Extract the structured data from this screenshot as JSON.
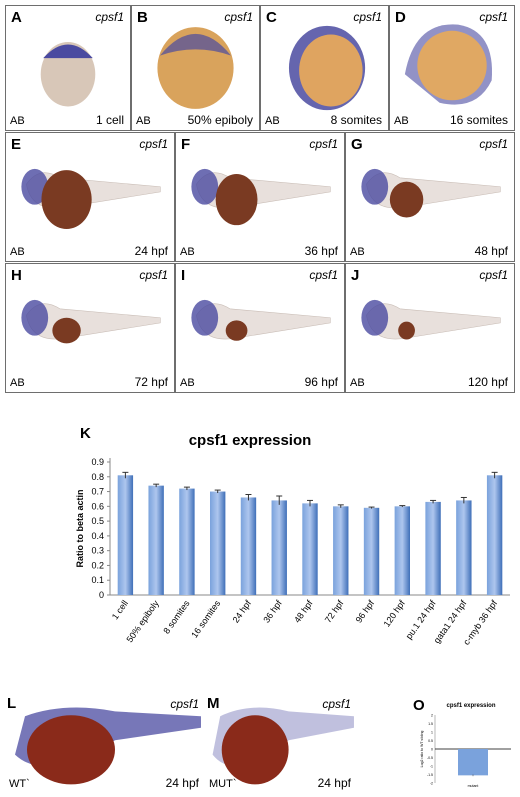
{
  "gene_label": "cpsf1",
  "embryo_panels": [
    {
      "label": "A",
      "strain": "AB",
      "stage": "1 cell"
    },
    {
      "label": "B",
      "strain": "AB",
      "stage": "50% epiboly"
    },
    {
      "label": "C",
      "strain": "AB",
      "stage": "8 somites"
    },
    {
      "label": "D",
      "strain": "AB",
      "stage": "16 somites"
    },
    {
      "label": "E",
      "strain": "AB",
      "stage": "24 hpf"
    },
    {
      "label": "F",
      "strain": "AB",
      "stage": "36 hpf"
    },
    {
      "label": "G",
      "strain": "AB",
      "stage": "48 hpf"
    },
    {
      "label": "H",
      "strain": "AB",
      "stage": "72 hpf"
    },
    {
      "label": "I",
      "strain": "AB",
      "stage": "96 hpf"
    },
    {
      "label": "J",
      "strain": "AB",
      "stage": "120 hpf"
    }
  ],
  "panel_k": {
    "label": "K"
  },
  "bottom_panels": [
    {
      "label": "L",
      "strain": "WT`",
      "stage": "24 hpf"
    },
    {
      "label": "M",
      "strain": "MUT`",
      "stage": "24 hpf"
    }
  ],
  "panel_o": {
    "label": "O"
  },
  "colors": {
    "stain": "#4a4aa0",
    "yolk": "#7a3a22",
    "bar": "#7aa2dc",
    "bar_dark": "#3f6fb8"
  },
  "chart_data": [
    {
      "type": "bar",
      "title": "cpsf1 expression",
      "ylabel": "Ratio to beta actin",
      "xlabel": "",
      "ylim": [
        0,
        0.9
      ],
      "yticks": [
        "0",
        "0.1",
        "0.2",
        "0.3",
        "0.4",
        "0.5",
        "0.6",
        "0.7",
        "0.8",
        "0.9"
      ],
      "grid": false,
      "categories": [
        "1 cell",
        "50% epiboly",
        "8 somites",
        "16 somites",
        "24 hpf",
        "36 hpf",
        "48 hpf",
        "72 hpf",
        "96 hpf",
        "120 hpf",
        "pu.1 24 hpf",
        "gata1 24 hpf",
        "c-myb 36 hpf"
      ],
      "values": [
        0.81,
        0.74,
        0.72,
        0.7,
        0.66,
        0.64,
        0.62,
        0.6,
        0.59,
        0.6,
        0.63,
        0.64,
        0.81
      ],
      "errors": [
        0.02,
        0.01,
        0.01,
        0.01,
        0.02,
        0.03,
        0.02,
        0.01,
        0.005,
        0.005,
        0.01,
        0.02,
        0.02
      ]
    },
    {
      "type": "bar",
      "title": "cpsf1 expression",
      "ylabel": "Log2 ratio to WT sibling",
      "ylim": [
        -2,
        2
      ],
      "yticks": [
        "2",
        "1.5",
        "1",
        "0.5",
        "0",
        "-0.5",
        "-1",
        "-1.5",
        "-2"
      ],
      "categories": [
        "mutant"
      ],
      "values": [
        -1.55
      ],
      "errors": [
        0.05
      ]
    }
  ]
}
